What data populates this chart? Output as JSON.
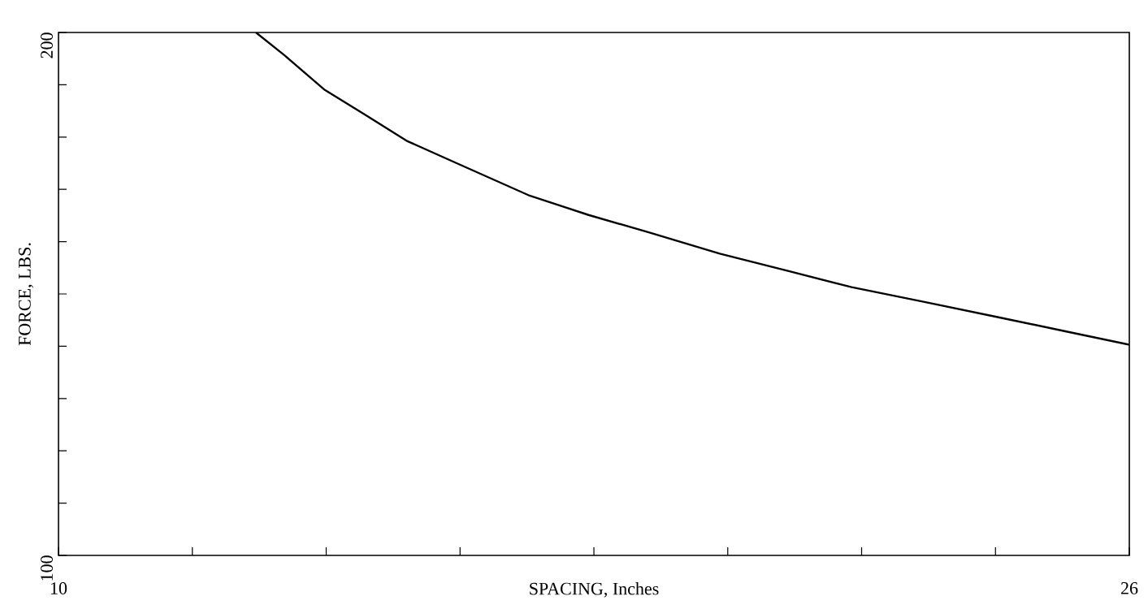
{
  "chart_data": {
    "type": "line",
    "xlabel": "SPACING, Inches",
    "ylabel": "FORCE, LBS.",
    "x": [
      12.95,
      13.37,
      13.98,
      14.59,
      15.2,
      15.95,
      17.02,
      17.92,
      18.84,
      19.88,
      20.9,
      21.85,
      22.97,
      24.06,
      25.03,
      26.0
    ],
    "values": [
      200,
      195.7,
      189.0,
      184.2,
      179.3,
      175.0,
      168.9,
      165.1,
      161.7,
      157.7,
      154.4,
      151.3,
      148.4,
      145.5,
      142.9,
      140.3
    ],
    "color": "#000000",
    "xlim": [
      10,
      26
    ],
    "ylim": [
      100,
      200
    ],
    "xticks": [
      10,
      {
        "value": 12,
        "label": null
      },
      {
        "value": 14,
        "label": null
      },
      {
        "value": 16,
        "label": null
      },
      {
        "value": 18,
        "label": null
      },
      {
        "value": 20,
        "label": null
      },
      {
        "value": 22,
        "label": null
      },
      {
        "value": 24,
        "label": null
      },
      26
    ],
    "yticks": [
      100,
      {
        "value": 110,
        "label": null
      },
      {
        "value": 120,
        "label": null
      },
      {
        "value": 130,
        "label": null
      },
      {
        "value": 140,
        "label": null
      },
      {
        "value": 150,
        "label": null
      },
      {
        "value": 160,
        "label": null
      },
      {
        "value": 170,
        "label": null
      },
      {
        "value": 180,
        "label": null
      },
      {
        "value": 190,
        "label": null
      },
      200
    ],
    "grid": false,
    "marker": "none",
    "line_style": "solid"
  }
}
